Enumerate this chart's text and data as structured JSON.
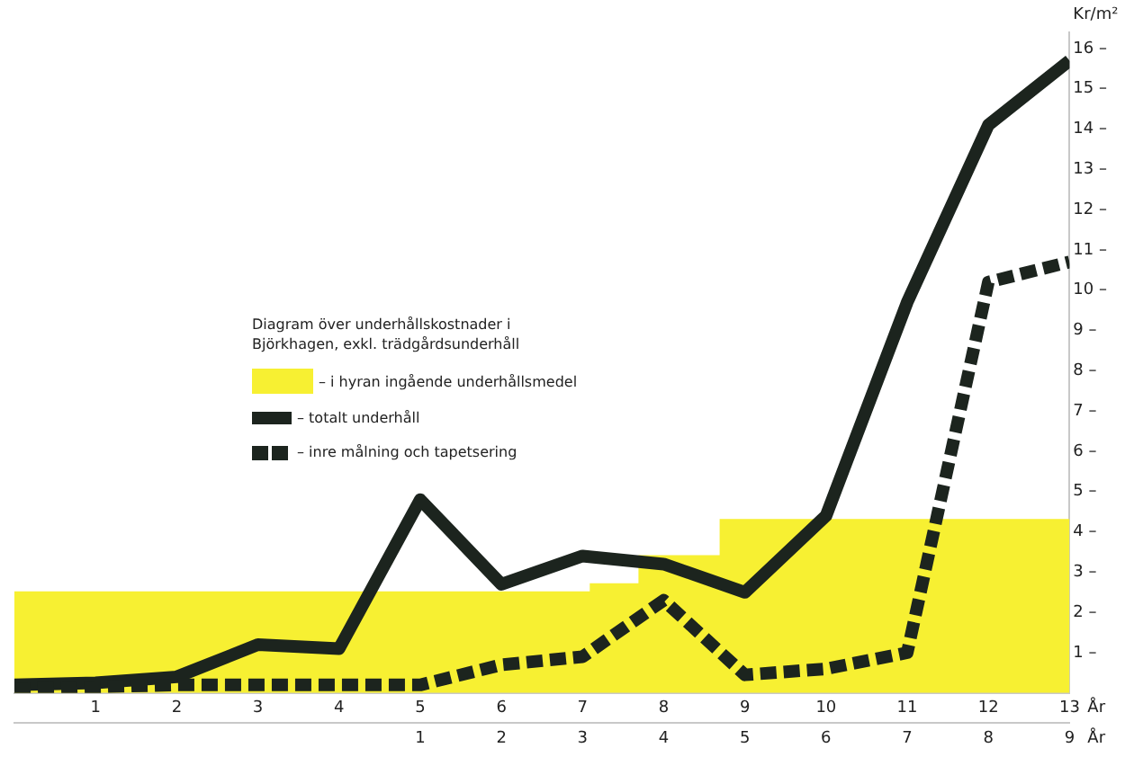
{
  "chart_data": {
    "type": "line",
    "legend_title": "Diagram över underhållskostnader i Björkhagen, exkl. trädgårdsunderhåll",
    "ylabel": "Kr/m²",
    "xlabel": "År",
    "x2label": "År",
    "x": [
      0,
      1,
      2,
      3,
      4,
      5,
      6,
      7,
      8,
      9,
      10,
      11,
      12,
      13
    ],
    "series": [
      {
        "name": "– i hyran ingående underhållsmedel",
        "type": "area",
        "color": "#f7f032",
        "x": [
          0,
          7.1,
          7.1,
          7.7,
          7.7,
          8.7,
          8.7,
          13
        ],
        "values": [
          2.5,
          2.5,
          2.7,
          2.7,
          3.4,
          3.4,
          4.3,
          4.3
        ]
      },
      {
        "name": "– totalt underhåll",
        "type": "line",
        "color": "#1c241e",
        "line_style": "solid",
        "values": [
          0.2,
          0.25,
          0.4,
          1.2,
          1.1,
          4.8,
          2.7,
          3.4,
          3.2,
          2.5,
          4.4,
          9.7,
          14.1,
          15.7
        ]
      },
      {
        "name": "– inre målning och tapetsering",
        "type": "line",
        "color": "#1c241e",
        "line_style": "dashed",
        "values": [
          0.1,
          0.15,
          0.2,
          0.2,
          0.2,
          0.2,
          0.7,
          0.9,
          2.3,
          0.45,
          0.6,
          1.0,
          10.2,
          10.7
        ]
      }
    ],
    "xlim": [
      0,
      13
    ],
    "xticks": [
      1,
      2,
      3,
      4,
      5,
      6,
      7,
      8,
      9,
      10,
      11,
      12,
      13
    ],
    "x2lim": [
      -4,
      9
    ],
    "x2ticks": [
      1,
      2,
      3,
      4,
      5,
      6,
      7,
      8,
      9
    ],
    "ylim": [
      0,
      16.4
    ],
    "yticks": [
      {
        "value": 1,
        "label": "1 –"
      },
      {
        "value": 2,
        "label": "2 –"
      },
      {
        "value": 3,
        "label": "3 –"
      },
      {
        "value": 4,
        "label": "4 –"
      },
      {
        "value": 5,
        "label": "5 –"
      },
      {
        "value": 6,
        "label": "6 –"
      },
      {
        "value": 7,
        "label": "7 –"
      },
      {
        "value": 8,
        "label": "8 –"
      },
      {
        "value": 9,
        "label": "9 –"
      },
      {
        "value": 10,
        "label": "10 –"
      },
      {
        "value": 11,
        "label": "11 –"
      },
      {
        "value": 12,
        "label": "12 –"
      },
      {
        "value": 13,
        "label": "13 –"
      },
      {
        "value": 14,
        "label": "14 –"
      },
      {
        "value": 15,
        "label": "15 –"
      },
      {
        "value": 16,
        "label": "16 –"
      }
    ],
    "grid": false,
    "legend": "left",
    "marker": "none"
  }
}
